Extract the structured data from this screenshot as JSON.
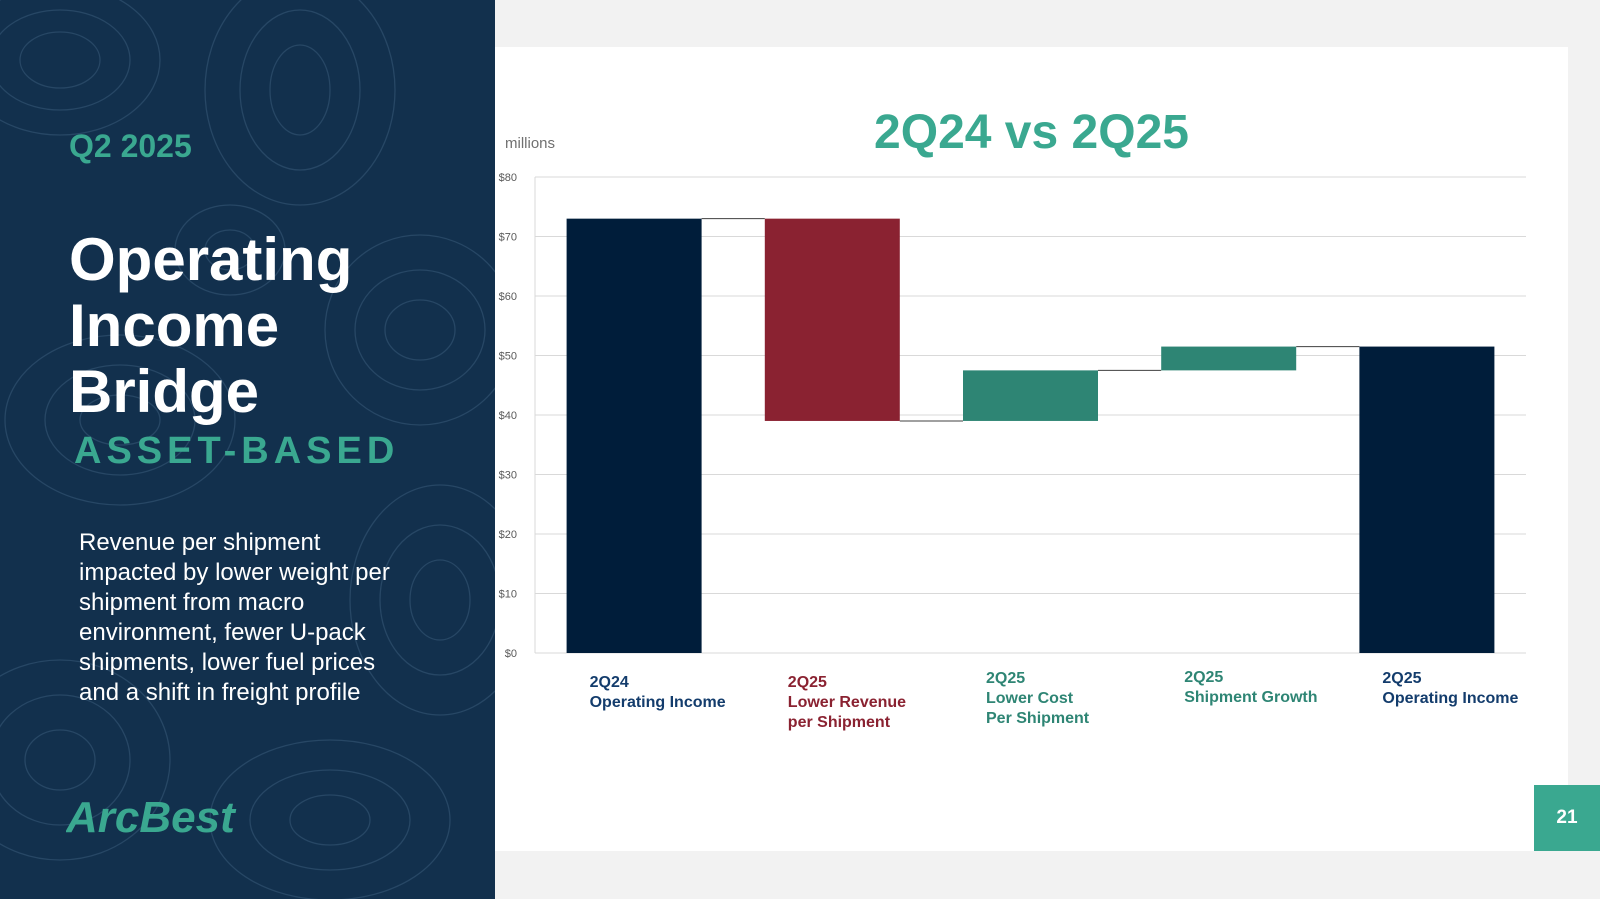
{
  "sidebar": {
    "quarter": "Q2 2025",
    "title": "Operating Income Bridge",
    "subtitle": "ASSET-BASED",
    "description": "Revenue per shipment impacted by lower weight per shipment from macro environment, fewer U-pack shipments, lower fuel prices and a shift in freight profile",
    "logo_text": "ArcBest"
  },
  "page_number": "21",
  "colors": {
    "navy": "#001d3a",
    "red": "#8a2231",
    "teal": "#2e8574",
    "accent": "#3aa890",
    "label_navy": "#133c6c"
  },
  "chart_data": {
    "type": "waterfall",
    "title": "2Q24 vs 2Q25",
    "unit_label": "millions",
    "ylim": [
      0,
      80
    ],
    "yticks": [
      0,
      10,
      20,
      30,
      40,
      50,
      60,
      70,
      80
    ],
    "ytick_labels": [
      "$0",
      "$10",
      "$20",
      "$30",
      "$40",
      "$50",
      "$60",
      "$70",
      "$80"
    ],
    "grid": true,
    "bars": [
      {
        "label_lines": [
          "2Q24",
          "Operating Income"
        ],
        "start": 0,
        "end": 73,
        "kind": "total"
      },
      {
        "label_lines": [
          "2Q25",
          "Lower Revenue",
          "per Shipment"
        ],
        "start": 73,
        "end": 39,
        "kind": "decrease"
      },
      {
        "label_lines": [
          "2Q25",
          "Lower Cost",
          "Per Shipment"
        ],
        "start": 39,
        "end": 47.5,
        "kind": "increase"
      },
      {
        "label_lines": [
          "2Q25",
          "Shipment Growth"
        ],
        "start": 47.5,
        "end": 51.5,
        "kind": "increase"
      },
      {
        "label_lines": [
          "2Q25",
          "Operating Income"
        ],
        "start": 0,
        "end": 51.5,
        "kind": "total"
      }
    ]
  }
}
